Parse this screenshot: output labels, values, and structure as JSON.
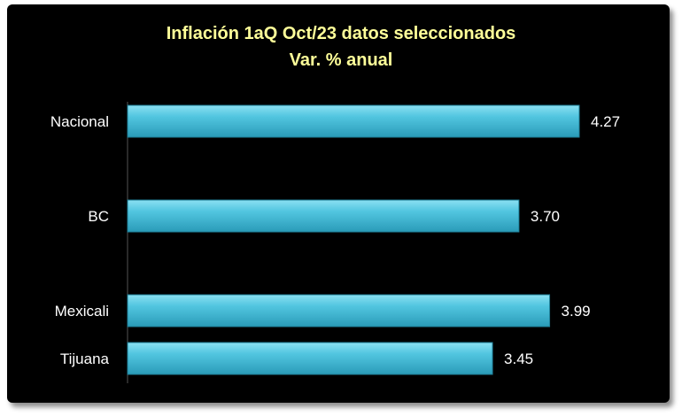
{
  "colors": {
    "background": "#000000",
    "title": "#FFFF99",
    "bar": "#4FC3DC",
    "text": "#FFFFFF"
  },
  "chart_data": {
    "type": "bar",
    "orientation": "horizontal",
    "title": "Inflación 1aQ Oct/23 datos seleccionados",
    "subtitle": "Var. % anual",
    "categories": [
      "Nacional",
      "BC",
      "Mexicali",
      "Tijuana"
    ],
    "values": [
      4.27,
      3.7,
      3.99,
      3.45
    ],
    "value_labels": [
      "4.27",
      "3.70",
      "3.99",
      "3.45"
    ],
    "xlim": [
      0,
      4.27
    ],
    "grid": false,
    "legend": "none"
  }
}
